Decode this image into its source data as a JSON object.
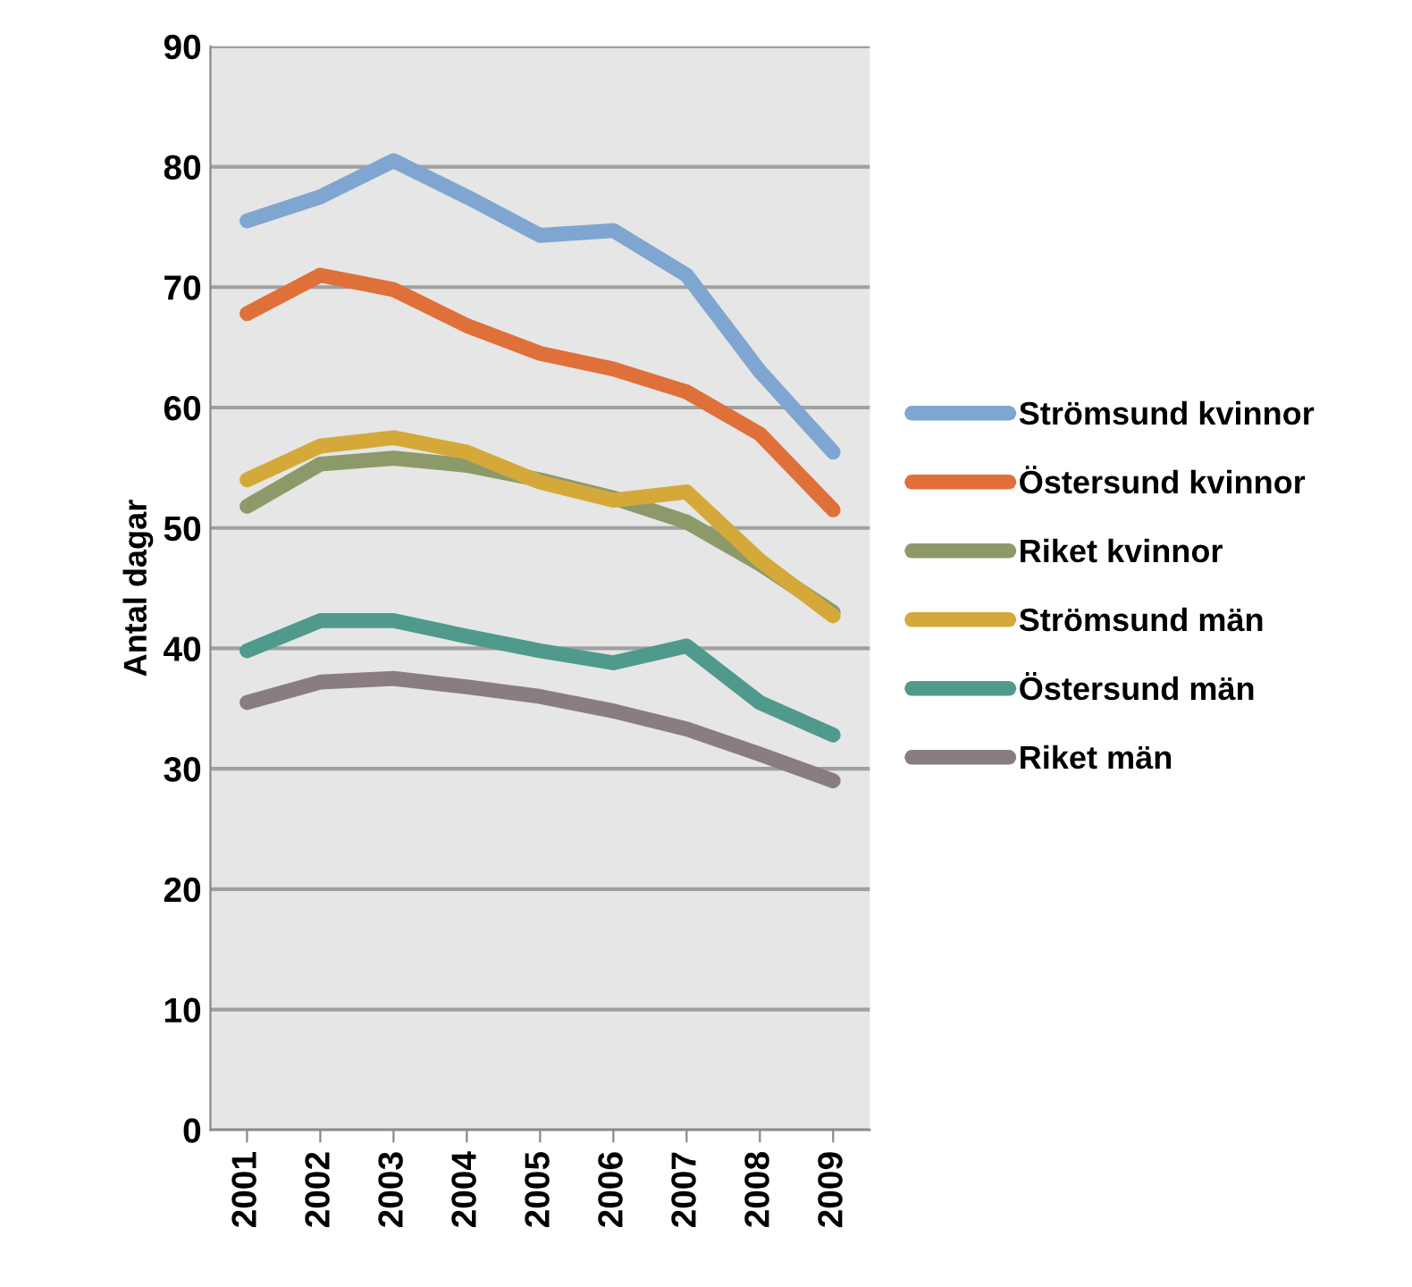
{
  "chart_data": {
    "type": "line",
    "ylabel": "Antal dagar",
    "categories": [
      "2001",
      "2002",
      "2003",
      "2004",
      "2005",
      "2006",
      "2007",
      "2008",
      "2009"
    ],
    "series": [
      {
        "name": "Strömsund kvinnor",
        "color": "#7ea6d0",
        "values": [
          75.5,
          77.5,
          80.5,
          77.5,
          74.3,
          74.7,
          71,
          63,
          56.3
        ]
      },
      {
        "name": "Östersund kvinnor",
        "color": "#e0703a",
        "values": [
          67.8,
          71,
          69.8,
          66.8,
          64.5,
          63.2,
          61.3,
          57.8,
          51.5
        ]
      },
      {
        "name": "Riket kvinnor",
        "color": "#8c9a6a",
        "values": [
          51.8,
          55.3,
          55.8,
          55.2,
          54,
          52.5,
          50.5,
          47,
          43
        ]
      },
      {
        "name": "Strömsund män",
        "color": "#d4a93a",
        "values": [
          54,
          56.8,
          57.5,
          56.3,
          53.8,
          52.3,
          53,
          47.3,
          42.7
        ]
      },
      {
        "name": "Östersund män",
        "color": "#4f9a8c",
        "values": [
          39.8,
          42.3,
          42.3,
          41,
          39.8,
          38.8,
          40.2,
          35.5,
          32.8
        ]
      },
      {
        "name": "Riket män",
        "color": "#8a7d80",
        "values": [
          35.5,
          37.2,
          37.5,
          36.8,
          36,
          34.8,
          33.3,
          31.2,
          29
        ]
      }
    ],
    "ylim": [
      0,
      90
    ],
    "yticks": [
      0,
      10,
      20,
      30,
      40,
      50,
      60,
      70,
      80,
      90
    ],
    "grid": "y",
    "legend": "right",
    "marker": "none",
    "line_style": "solid"
  }
}
